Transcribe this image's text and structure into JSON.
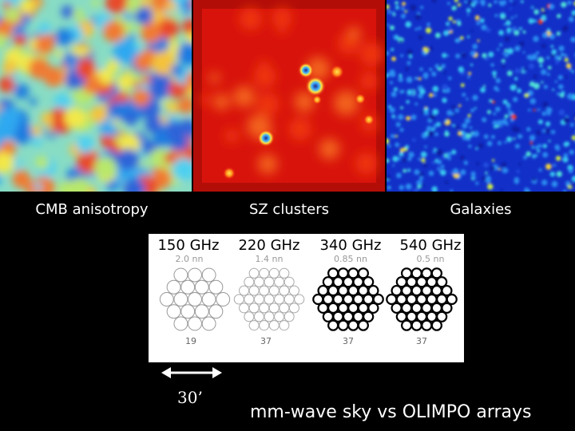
{
  "panels": [
    {
      "caption": "CMB anisotropy"
    },
    {
      "caption": "SZ clusters"
    },
    {
      "caption": "Galaxies"
    }
  ],
  "arrays": {
    "frequencies": [
      "150 GHz",
      "220 GHz",
      "340 GHz",
      "540 GHz"
    ],
    "beam_labels": [
      "2.0 nn",
      "1.4 nn",
      "0.85 nn",
      "0.5 nn"
    ],
    "detector_counts": [
      "19",
      "37",
      "37",
      "37"
    ]
  },
  "scale": {
    "label": "30’"
  },
  "footer": {
    "text": "mm-wave sky vs OLIMPO arrays"
  },
  "colors": {
    "cmb_base": "#7fd9c4",
    "sz_base": "#d9140e",
    "galaxy_base": "#1f3ad6"
  }
}
